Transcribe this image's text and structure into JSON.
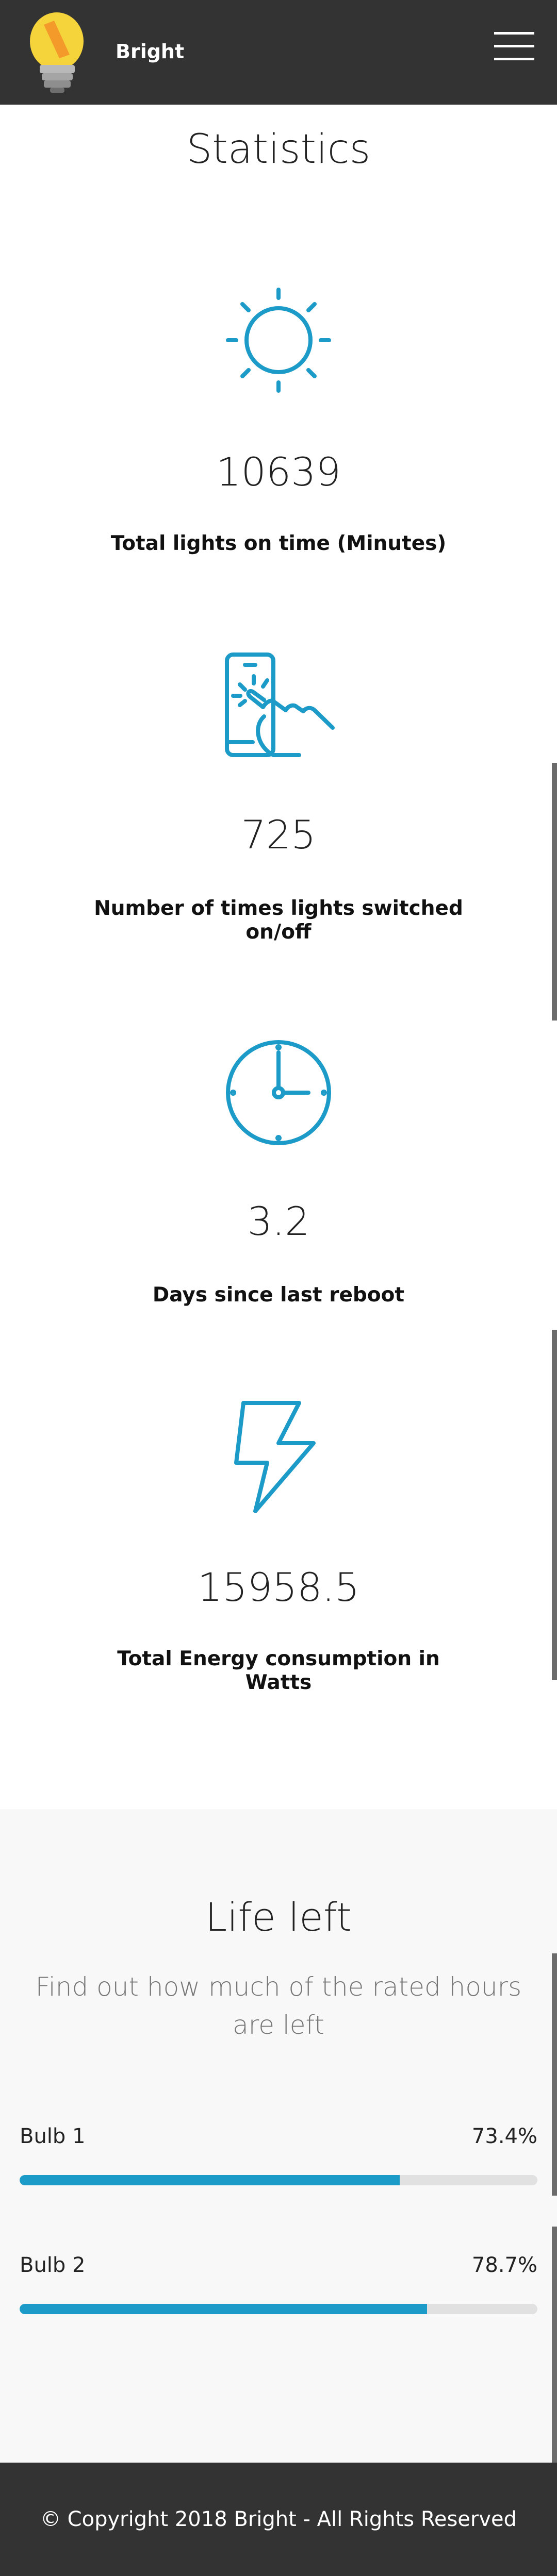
{
  "navbar": {
    "brand": "Bright",
    "logo_icon": "lightbulb-logo-icon",
    "menu_icon": "hamburger-menu-icon"
  },
  "statistics": {
    "title": "Statistics",
    "items": [
      {
        "icon": "sun-icon",
        "value": "10639",
        "label": "Total lights on time (Minutes)"
      },
      {
        "icon": "hand-tap-phone-icon",
        "value": "725",
        "label": "Number of times lights switched on/off"
      },
      {
        "icon": "clock-icon",
        "value": "3.2",
        "label": "Days since last reboot"
      },
      {
        "icon": "lightning-bolt-icon",
        "value": "15958.5",
        "label": "Total Energy consumption in Watts"
      }
    ]
  },
  "life_left": {
    "title": "Life left",
    "subtitle": "Find out how much of the rated hours are left",
    "bulbs": [
      {
        "name": "Bulb 1",
        "percent_text": "73.4%",
        "percent": 73.4
      },
      {
        "name": "Bulb 2",
        "percent_text": "78.7%",
        "percent": 78.7
      }
    ]
  },
  "footer": {
    "copyright": "© Copyright 2018 Bright - All Rights Reserved"
  },
  "colors": {
    "accent": "#1c9bc8",
    "navbar_bg": "#333333",
    "section_bg": "#f8f8f8",
    "bar_track": "#e1e1e1"
  }
}
